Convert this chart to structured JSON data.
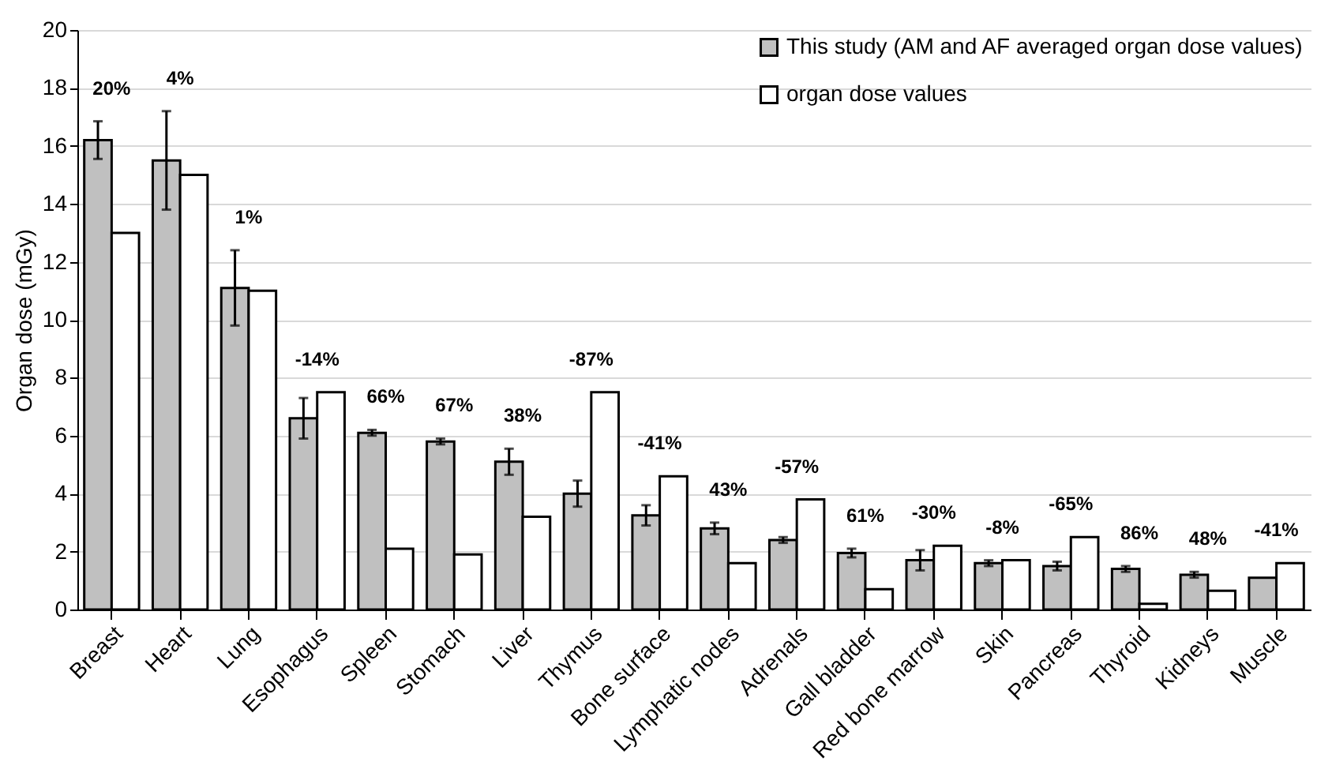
{
  "chart_data": {
    "type": "bar",
    "ylabel": "Organ dose (mGy)",
    "categories": [
      "Breast",
      "Heart",
      "Lung",
      "Esophagus",
      "Spleen",
      "Stomach",
      "Liver",
      "Thymus",
      "Bone surface",
      "Lymphatic nodes",
      "Adrenals",
      "Gall bladder",
      "Red bone marrow",
      "Skin",
      "Pancreas",
      "Thyroid",
      "Kidneys",
      "Muscle"
    ],
    "series": [
      {
        "name": "This study (AM and AF averaged organ dose values)",
        "color": "#c0c0c0",
        "values": [
          16.2,
          15.5,
          11.1,
          6.6,
          6.1,
          5.8,
          5.1,
          4.0,
          3.25,
          2.8,
          2.4,
          1.95,
          1.7,
          1.6,
          1.5,
          1.4,
          1.2,
          1.1
        ],
        "errors": [
          0.65,
          1.7,
          1.3,
          0.7,
          0.1,
          0.1,
          0.45,
          0.45,
          0.35,
          0.2,
          0.1,
          0.15,
          0.35,
          0.1,
          0.15,
          0.1,
          0.1,
          null
        ]
      },
      {
        "name": "organ dose values",
        "color": "#ffffff",
        "values": [
          13.0,
          15.0,
          11.0,
          7.5,
          2.1,
          1.9,
          3.2,
          7.5,
          4.6,
          1.6,
          3.8,
          0.7,
          2.2,
          1.7,
          2.5,
          0.2,
          0.65,
          1.6
        ]
      }
    ],
    "annotations": [
      "20%",
      "4%",
      "1%",
      "-14%",
      "66%",
      "67%",
      "38%",
      "-87%",
      "-41%",
      "43%",
      "-57%",
      "61%",
      "-30%",
      "-8%",
      "-65%",
      "86%",
      "48%",
      "-41%"
    ],
    "ylim": [
      0,
      20
    ],
    "yticks": [
      0,
      2,
      4,
      6,
      8,
      10,
      12,
      14,
      16,
      18,
      20
    ],
    "grid": "y",
    "legend": "top right"
  }
}
